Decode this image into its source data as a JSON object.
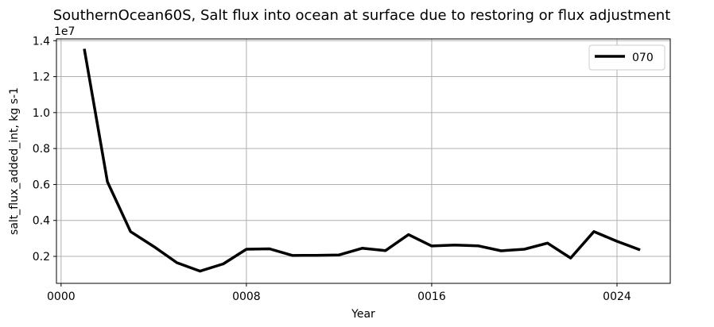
{
  "chart_data": {
    "type": "line",
    "title": "SouthernOcean60S, Salt flux into ocean at surface due to restoring or flux adjustment",
    "xlabel": "Year",
    "ylabel": "salt_flux_added_int, kg s-1",
    "y_offset_label": "1e7",
    "xlim": [
      -0.2,
      26.3
    ],
    "ylim": [
      0.05,
      1.41
    ],
    "x_ticks": [
      0,
      8,
      16,
      24
    ],
    "x_tick_labels": [
      "0000",
      "0008",
      "0016",
      "0024"
    ],
    "y_ticks": [
      0.2,
      0.4,
      0.6,
      0.8,
      1.0,
      1.2,
      1.4
    ],
    "y_tick_labels": [
      "0.2",
      "0.4",
      "0.6",
      "0.8",
      "1.0",
      "1.2",
      "1.4"
    ],
    "grid": true,
    "legend_position": "top-right",
    "series": [
      {
        "name": "070",
        "color": "#000000",
        "x": [
          1,
          2,
          3,
          4,
          5,
          6,
          7,
          8,
          9,
          10,
          11,
          12,
          13,
          14,
          15,
          16,
          17,
          18,
          19,
          20,
          21,
          22,
          23,
          24,
          25
        ],
        "values": [
          1.355,
          0.615,
          0.338,
          0.255,
          0.165,
          0.118,
          0.158,
          0.24,
          0.242,
          0.205,
          0.206,
          0.208,
          0.245,
          0.232,
          0.321,
          0.258,
          0.263,
          0.259,
          0.231,
          0.24,
          0.274,
          0.191,
          0.338,
          0.284,
          0.236
        ]
      }
    ]
  }
}
